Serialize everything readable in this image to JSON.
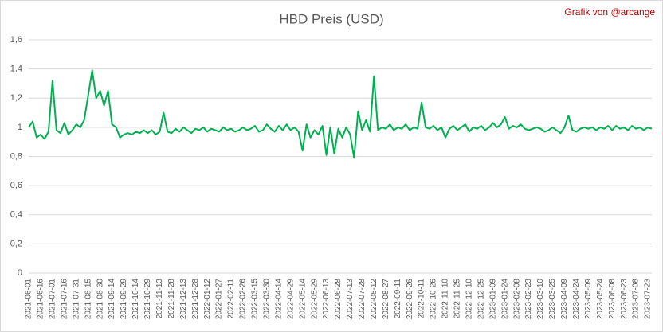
{
  "chart_data": {
    "type": "line",
    "title": "HBD Preis (USD)",
    "credit": "Grafik von @arcange",
    "categories": [
      "2021-06-01",
      null,
      null,
      "2021-06-16",
      null,
      null,
      "2021-07-01",
      null,
      null,
      "2021-07-16",
      null,
      null,
      "2021-07-31",
      null,
      null,
      "2021-08-15",
      null,
      null,
      "2021-08-30",
      null,
      null,
      "2021-09-14",
      null,
      null,
      "2021-09-29",
      null,
      null,
      "2021-10-14",
      null,
      null,
      "2021-10-29",
      null,
      null,
      "2021-11-13",
      null,
      null,
      "2021-11-28",
      null,
      null,
      "2021-12-13",
      null,
      null,
      "2021-12-28",
      null,
      null,
      "2022-01-12",
      null,
      null,
      "2022-01-27",
      null,
      null,
      "2022-02-11",
      null,
      null,
      "2022-02-26",
      null,
      null,
      "2022-03-15",
      null,
      null,
      "2022-03-30",
      null,
      null,
      "2022-04-14",
      null,
      null,
      "2022-04-29",
      null,
      null,
      "2022-05-14",
      null,
      null,
      "2022-05-29",
      null,
      null,
      "2022-06-13",
      null,
      null,
      "2022-06-28",
      null,
      null,
      "2022-07-13",
      null,
      null,
      "2022-07-28",
      null,
      null,
      "2022-08-12",
      null,
      null,
      "2022-08-27",
      null,
      null,
      "2022-09-11",
      null,
      null,
      "2022-09-26",
      null,
      null,
      "2022-10-11",
      null,
      null,
      "2022-10-26",
      null,
      null,
      "2022-11-10",
      null,
      null,
      "2022-11-25",
      null,
      null,
      "2022-12-10",
      null,
      null,
      "2022-12-25",
      null,
      null,
      "2023-01-09",
      null,
      null,
      "2023-01-24",
      null,
      null,
      "2023-02-08",
      null,
      null,
      "2023-02-23",
      null,
      null,
      "2023-03-10",
      null,
      null,
      "2023-03-25",
      null,
      null,
      "2023-04-09",
      null,
      null,
      "2023-04-24",
      null,
      null,
      "2023-05-09",
      null,
      null,
      "2023-05-24",
      null,
      null,
      "2023-06-08",
      null,
      null,
      "2023-06-23",
      null,
      null,
      "2023-07-08",
      null,
      null,
      "2023-07-23",
      null
    ],
    "values": [
      1.0,
      1.04,
      0.93,
      0.95,
      0.92,
      0.97,
      1.32,
      0.98,
      0.96,
      1.03,
      0.95,
      0.98,
      1.02,
      1.0,
      1.05,
      1.22,
      1.39,
      1.2,
      1.25,
      1.15,
      1.25,
      1.02,
      1.0,
      0.93,
      0.95,
      0.96,
      0.95,
      0.97,
      0.96,
      0.98,
      0.96,
      0.98,
      0.95,
      0.97,
      1.1,
      0.97,
      0.96,
      0.99,
      0.97,
      1.0,
      0.98,
      0.96,
      0.99,
      0.98,
      1.0,
      0.97,
      0.99,
      0.98,
      0.97,
      1.0,
      0.98,
      0.99,
      0.97,
      0.98,
      1.0,
      0.98,
      0.99,
      1.01,
      0.97,
      0.98,
      1.02,
      0.99,
      0.97,
      1.01,
      0.98,
      1.02,
      0.98,
      1.0,
      0.97,
      0.84,
      1.02,
      0.93,
      0.98,
      0.95,
      1.01,
      0.81,
      1.0,
      0.82,
      0.99,
      0.93,
      1.0,
      0.95,
      0.79,
      1.11,
      0.98,
      1.05,
      0.97,
      1.35,
      0.98,
      1.0,
      0.99,
      1.02,
      0.98,
      1.0,
      0.99,
      1.02,
      0.98,
      1.0,
      0.99,
      1.17,
      1.0,
      0.99,
      1.01,
      0.98,
      1.0,
      0.93,
      0.99,
      1.01,
      0.98,
      1.0,
      1.02,
      0.97,
      1.0,
      0.99,
      1.01,
      0.98,
      1.0,
      1.03,
      1.0,
      1.02,
      1.07,
      0.99,
      1.01,
      1.0,
      1.02,
      0.99,
      0.98,
      0.99,
      1.0,
      0.99,
      0.97,
      0.98,
      1.0,
      0.98,
      0.96,
      1.0,
      1.08,
      0.98,
      0.97,
      0.99,
      1.0,
      0.99,
      1.0,
      0.98,
      1.0,
      0.99,
      1.01,
      0.98,
      1.01,
      0.99,
      1.0,
      0.98,
      1.01,
      0.99,
      1.0,
      0.98,
      1.0,
      0.99
    ],
    "color": "#00b050",
    "ylim": [
      0,
      1.6
    ],
    "yticks": [
      0,
      {
        "value": 0.2,
        "label": "0,2"
      },
      {
        "value": 0.4,
        "label": "0,4"
      },
      {
        "value": 0.6,
        "label": "0,6"
      },
      {
        "value": 0.8,
        "label": "0,8"
      },
      1,
      {
        "value": 1.2,
        "label": "1,2"
      },
      {
        "value": 1.4,
        "label": "1,4"
      },
      {
        "value": 1.6,
        "label": "1,6"
      }
    ],
    "grid": true
  }
}
